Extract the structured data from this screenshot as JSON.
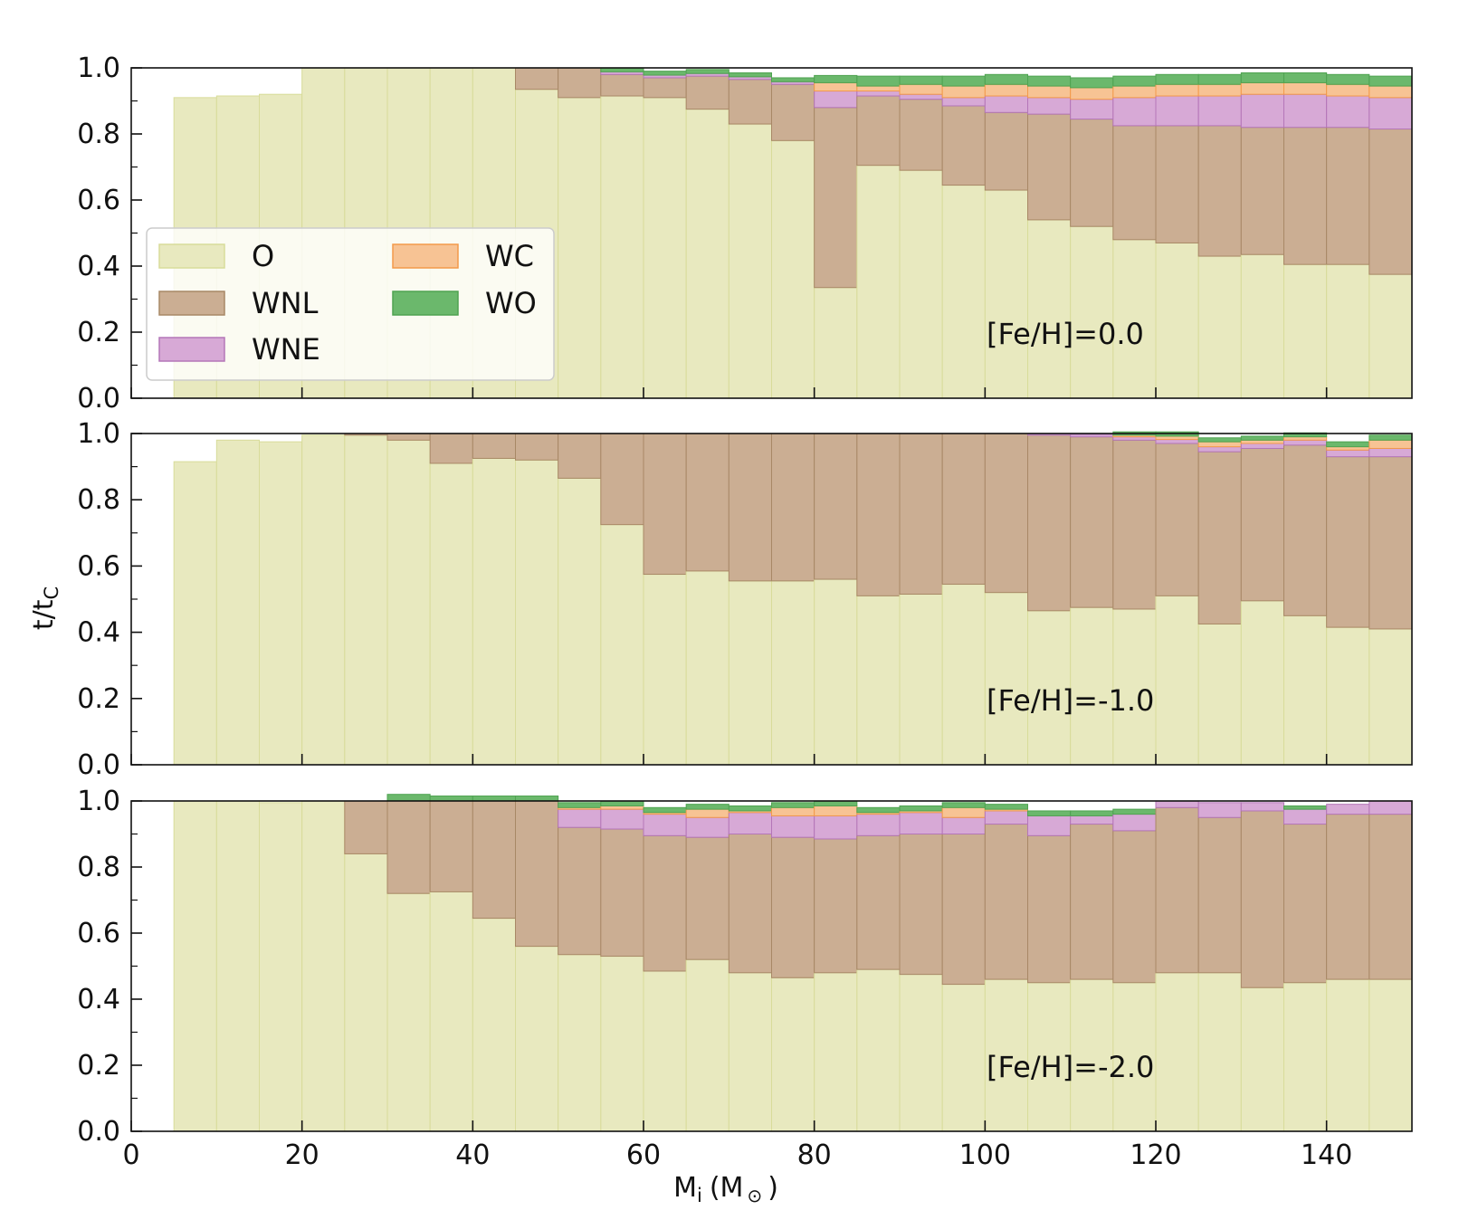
{
  "figure": {
    "ylabel_main": "t/t",
    "ylabel_sub": "C",
    "xlabel_main": "M",
    "xlabel_sub": "i",
    "xlabel_paren_open": "(M",
    "xlabel_sun": "⊙",
    "xlabel_paren_close": ")"
  },
  "legend": {
    "items": [
      {
        "label": "O",
        "color": "#e8e9bf",
        "edge": "#d8dc9a"
      },
      {
        "label": "WNL",
        "color": "#cbae93",
        "edge": "#a88866"
      },
      {
        "label": "WNE",
        "color": "#d7a9d6",
        "edge": "#b476b8"
      },
      {
        "label": "WC",
        "color": "#f7c394",
        "edge": "#f39a4a"
      },
      {
        "label": "WO",
        "color": "#6bb86c",
        "edge": "#4fa351"
      }
    ]
  },
  "chart_data": [
    {
      "type": "bar",
      "stacked": true,
      "title": "[Fe/H]=0.0",
      "xlabel": "",
      "ylabel": "",
      "xlim": [
        0,
        150
      ],
      "ylim": [
        0,
        1.0
      ],
      "xticks": [
        "0",
        "20",
        "40",
        "60",
        "80",
        "100",
        "120",
        "140"
      ],
      "yticks": [
        "0.0",
        "0.2",
        "0.4",
        "0.6",
        "0.8",
        "1.0"
      ],
      "show_x_ticklabels": false,
      "show_legend": true,
      "bin_width": 5,
      "bin_starts": [
        5,
        10,
        15,
        20,
        25,
        30,
        35,
        40,
        45,
        50,
        55,
        60,
        65,
        70,
        75,
        80,
        85,
        90,
        95,
        100,
        105,
        110,
        115,
        120,
        125,
        130,
        135,
        140,
        145
      ],
      "series": [
        {
          "name": "O",
          "values": [
            0.91,
            0.915,
            0.92,
            1.0,
            1.0,
            1.0,
            1.0,
            1.0,
            0.935,
            0.91,
            0.915,
            0.91,
            0.875,
            0.83,
            0.78,
            0.335,
            0.705,
            0.69,
            0.645,
            0.63,
            0.54,
            0.52,
            0.48,
            0.47,
            0.43,
            0.435,
            0.405,
            0.405,
            0.375
          ]
        },
        {
          "name": "WNL",
          "values": [
            0,
            0,
            0,
            0,
            0,
            0,
            0,
            0,
            0.065,
            0.09,
            0.065,
            0.06,
            0.1,
            0.135,
            0.17,
            0.545,
            0.21,
            0.215,
            0.24,
            0.235,
            0.32,
            0.325,
            0.345,
            0.355,
            0.395,
            0.385,
            0.415,
            0.415,
            0.44
          ]
        },
        {
          "name": "WNE",
          "values": [
            0,
            0,
            0,
            0,
            0,
            0,
            0,
            0,
            0,
            0,
            0.008,
            0.008,
            0.008,
            0.008,
            0.008,
            0.05,
            0.015,
            0.015,
            0.025,
            0.05,
            0.05,
            0.06,
            0.085,
            0.09,
            0.09,
            0.1,
            0.1,
            0.095,
            0.095
          ]
        },
        {
          "name": "WC",
          "values": [
            0,
            0,
            0,
            0,
            0,
            0,
            0,
            0,
            0,
            0,
            0,
            0,
            0,
            0,
            0,
            0.025,
            0.015,
            0.03,
            0.035,
            0.035,
            0.035,
            0.035,
            0.035,
            0.035,
            0.035,
            0.035,
            0.035,
            0.035,
            0.035
          ]
        },
        {
          "name": "WO",
          "values": [
            0,
            0,
            0,
            0,
            0,
            0,
            0,
            0,
            0,
            0,
            0.012,
            0.012,
            0.012,
            0.012,
            0.012,
            0.022,
            0.03,
            0.025,
            0.03,
            0.03,
            0.03,
            0.03,
            0.03,
            0.03,
            0.03,
            0.03,
            0.03,
            0.03,
            0.03
          ]
        }
      ]
    },
    {
      "type": "bar",
      "stacked": true,
      "title": "[Fe/H]=-1.0",
      "xlabel": "",
      "ylabel": "",
      "xlim": [
        0,
        150
      ],
      "ylim": [
        0,
        1.0
      ],
      "xticks": [
        "0",
        "20",
        "40",
        "60",
        "80",
        "100",
        "120",
        "140"
      ],
      "yticks": [
        "0.0",
        "0.2",
        "0.4",
        "0.6",
        "0.8",
        "1.0"
      ],
      "show_x_ticklabels": false,
      "show_legend": false,
      "bin_width": 5,
      "bin_starts": [
        5,
        10,
        15,
        20,
        25,
        30,
        35,
        40,
        45,
        50,
        55,
        60,
        65,
        70,
        75,
        80,
        85,
        90,
        95,
        100,
        105,
        110,
        115,
        120,
        125,
        130,
        135,
        140,
        145
      ],
      "series": [
        {
          "name": "O",
          "values": [
            0.915,
            0.98,
            0.975,
            0.995,
            0.995,
            0.98,
            0.91,
            0.925,
            0.92,
            0.865,
            0.725,
            0.575,
            0.585,
            0.555,
            0.555,
            0.56,
            0.51,
            0.515,
            0.545,
            0.52,
            0.465,
            0.475,
            0.47,
            0.51,
            0.425,
            0.495,
            0.45,
            0.415,
            0.41
          ]
        },
        {
          "name": "WNL",
          "values": [
            0,
            0,
            0,
            0,
            0.005,
            0.02,
            0.09,
            0.075,
            0.08,
            0.135,
            0.275,
            0.425,
            0.415,
            0.445,
            0.445,
            0.44,
            0.49,
            0.485,
            0.455,
            0.48,
            0.53,
            0.515,
            0.51,
            0.46,
            0.52,
            0.46,
            0.515,
            0.515,
            0.52
          ]
        },
        {
          "name": "WNE",
          "values": [
            0,
            0,
            0,
            0,
            0,
            0,
            0,
            0,
            0,
            0,
            0,
            0,
            0,
            0,
            0,
            0,
            0,
            0,
            0,
            0,
            0.004,
            0.007,
            0.01,
            0.012,
            0.015,
            0.015,
            0.015,
            0.02,
            0.025
          ]
        },
        {
          "name": "WC",
          "values": [
            0,
            0,
            0,
            0,
            0,
            0,
            0,
            0,
            0,
            0,
            0,
            0,
            0,
            0,
            0,
            0,
            0,
            0,
            0,
            0,
            0,
            0,
            0.005,
            0.01,
            0.015,
            0.01,
            0.01,
            0.01,
            0.025
          ]
        },
        {
          "name": "WO",
          "values": [
            0,
            0,
            0,
            0,
            0,
            0,
            0,
            0,
            0,
            0,
            0,
            0,
            0,
            0,
            0,
            0,
            0,
            0,
            0,
            0,
            0,
            0,
            0.01,
            0.013,
            0.012,
            0.012,
            0.012,
            0.015,
            0.015
          ]
        }
      ]
    },
    {
      "type": "bar",
      "stacked": true,
      "title": "[Fe/H]=-2.0",
      "xlabel": "",
      "ylabel": "",
      "xlim": [
        0,
        150
      ],
      "ylim": [
        0,
        1.0
      ],
      "xticks": [
        "0",
        "20",
        "40",
        "60",
        "80",
        "100",
        "120",
        "140"
      ],
      "yticks": [
        "0.0",
        "0.2",
        "0.4",
        "0.6",
        "0.8",
        "1.0"
      ],
      "show_x_ticklabels": true,
      "show_legend": false,
      "bin_width": 5,
      "bin_starts": [
        5,
        10,
        15,
        20,
        25,
        30,
        35,
        40,
        45,
        50,
        55,
        60,
        65,
        70,
        75,
        80,
        85,
        90,
        95,
        100,
        105,
        110,
        115,
        120,
        125,
        130,
        135,
        140,
        145
      ],
      "series": [
        {
          "name": "O",
          "values": [
            1.0,
            1.0,
            0.995,
            1.0,
            0.84,
            0.72,
            0.725,
            0.645,
            0.56,
            0.535,
            0.53,
            0.485,
            0.52,
            0.48,
            0.465,
            0.48,
            0.49,
            0.475,
            0.445,
            0.46,
            0.45,
            0.46,
            0.45,
            0.48,
            0.48,
            0.435,
            0.45,
            0.46,
            0.46
          ]
        },
        {
          "name": "WNL",
          "values": [
            0,
            0,
            0,
            0,
            0.16,
            0.28,
            0.275,
            0.355,
            0.44,
            0.385,
            0.385,
            0.41,
            0.37,
            0.42,
            0.425,
            0.405,
            0.405,
            0.425,
            0.455,
            0.47,
            0.445,
            0.47,
            0.46,
            0.5,
            0.47,
            0.535,
            0.48,
            0.5,
            0.5
          ]
        },
        {
          "name": "WNE",
          "values": [
            0,
            0,
            0,
            0,
            0,
            0,
            0,
            0,
            0,
            0.055,
            0.06,
            0.065,
            0.06,
            0.065,
            0.065,
            0.07,
            0.065,
            0.065,
            0.05,
            0.04,
            0.06,
            0.025,
            0.05,
            0.02,
            0.045,
            0.025,
            0.045,
            0.03,
            0.04
          ]
        },
        {
          "name": "WC",
          "values": [
            0,
            0,
            0,
            0,
            0,
            0,
            0,
            0,
            0,
            0.005,
            0.01,
            0.005,
            0.025,
            0.005,
            0.025,
            0.03,
            0.005,
            0.005,
            0.03,
            0.005,
            0,
            0,
            0,
            0,
            0,
            0,
            0,
            0,
            0
          ]
        },
        {
          "name": "WO",
          "values": [
            0,
            0,
            0,
            0,
            0,
            0.02,
            0.015,
            0.015,
            0.015,
            0.015,
            0.015,
            0.015,
            0.015,
            0.015,
            0.015,
            0.015,
            0.015,
            0.015,
            0.015,
            0.015,
            0.015,
            0.015,
            0.015,
            0,
            0,
            0,
            0.01,
            0,
            0
          ]
        }
      ]
    }
  ]
}
